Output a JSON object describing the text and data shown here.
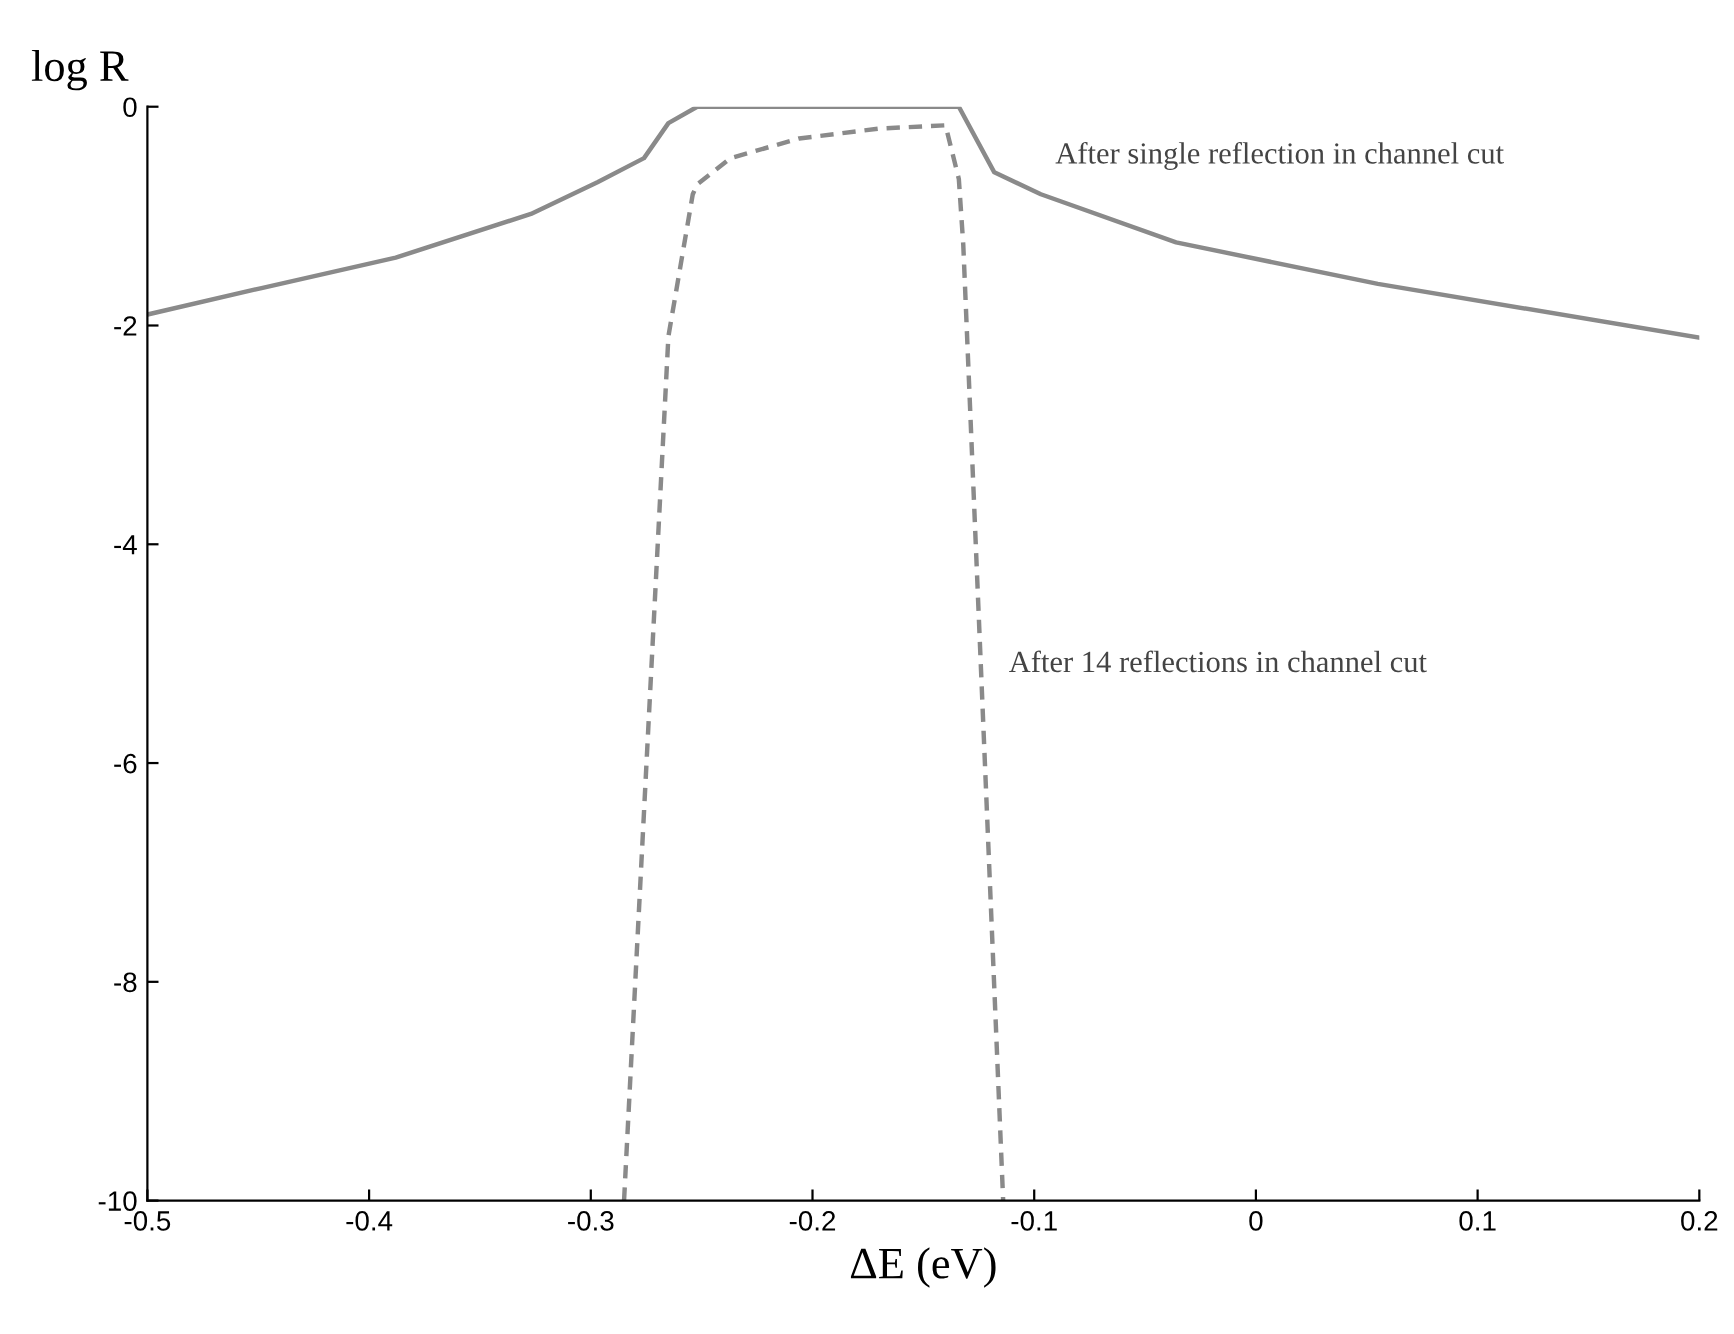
{
  "chart_data": {
    "type": "line",
    "xlabel": "ΔE (eV)",
    "ylabel": "log R",
    "xlim": [
      -0.5,
      0.2
    ],
    "ylim": [
      -10,
      0
    ],
    "xticks": [
      -0.5,
      -0.4,
      -0.3,
      -0.2,
      -0.1,
      0,
      0.1,
      0.2
    ],
    "yticks": [
      -10,
      -8,
      -6,
      -4,
      -2,
      0
    ],
    "grid": false,
    "series": [
      {
        "color": "#8a8a8a",
        "line_style": "solid",
        "x": [
          -0.5,
          -0.449,
          -0.388,
          -0.327,
          -0.297,
          -0.276,
          -0.265,
          -0.252,
          -0.134,
          -0.118,
          -0.097,
          -0.036,
          0.055,
          0.2
        ],
        "values": [
          -1.9,
          -1.66,
          -1.38,
          -0.98,
          -0.69,
          -0.47,
          -0.15,
          0,
          0,
          -0.6,
          -0.8,
          -1.24,
          -1.62,
          -2.11
        ]
      },
      {
        "color": "#8a8a8a",
        "line_style": "dashed",
        "x": [
          -0.285,
          -0.265,
          -0.254,
          -0.252,
          -0.237,
          -0.206,
          -0.17,
          -0.14,
          -0.134,
          -0.132,
          -0.114
        ],
        "values": [
          -10,
          -2.1,
          -0.8,
          -0.71,
          -0.47,
          -0.29,
          -0.2,
          -0.17,
          -0.66,
          -1.26,
          -10
        ]
      }
    ],
    "annotations": [
      "After single reflection in channel cut",
      "After 14 reflections in channel cut"
    ]
  }
}
